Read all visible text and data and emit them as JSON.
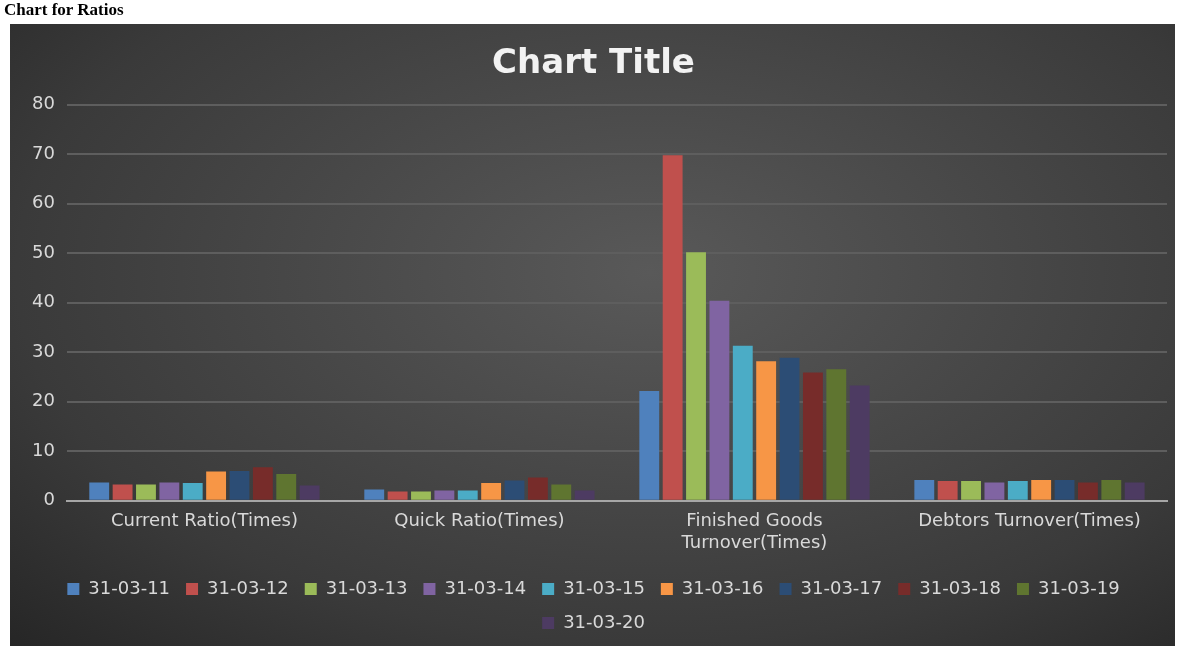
{
  "chart_data": {
    "type": "bar",
    "title": "Chart Title",
    "annotations": [
      "Chart for Ratios"
    ],
    "categories": [
      "Current Ratio(Times)",
      "Quick Ratio(Times)",
      "Finished Goods Turnover(Times)",
      "Debtors Turnover(Times)"
    ],
    "series": [
      {
        "name": "31-03-11",
        "color": "#4f81bd",
        "values": [
          3.7,
          2.3,
          22.2,
          4.2
        ]
      },
      {
        "name": "31-03-12",
        "color": "#c0504d",
        "values": [
          3.3,
          1.9,
          69.8,
          4.0
        ]
      },
      {
        "name": "31-03-13",
        "color": "#9bbb59",
        "values": [
          3.3,
          1.9,
          50.2,
          4.0
        ]
      },
      {
        "name": "31-03-14",
        "color": "#8064a2",
        "values": [
          3.7,
          2.1,
          40.4,
          3.7
        ]
      },
      {
        "name": "31-03-15",
        "color": "#4bacc6",
        "values": [
          3.6,
          2.1,
          31.3,
          4.0
        ]
      },
      {
        "name": "31-03-16",
        "color": "#f79646",
        "values": [
          5.9,
          3.6,
          28.2,
          4.2
        ]
      },
      {
        "name": "31-03-17",
        "color": "#2c4d75",
        "values": [
          6.0,
          4.1,
          28.9,
          4.2
        ]
      },
      {
        "name": "31-03-18",
        "color": "#772c2a",
        "values": [
          6.8,
          4.7,
          25.9,
          3.7
        ]
      },
      {
        "name": "31-03-19",
        "color": "#5f7530",
        "values": [
          5.4,
          3.3,
          26.6,
          4.2
        ]
      },
      {
        "name": "31-03-20",
        "color": "#4d3b62",
        "values": [
          3.1,
          2.1,
          23.3,
          3.7
        ]
      }
    ],
    "ylim": [
      0,
      80
    ],
    "yticks": [
      0,
      10,
      20,
      30,
      40,
      50,
      60,
      70,
      80
    ],
    "grid": "y",
    "legend": "bottom"
  }
}
